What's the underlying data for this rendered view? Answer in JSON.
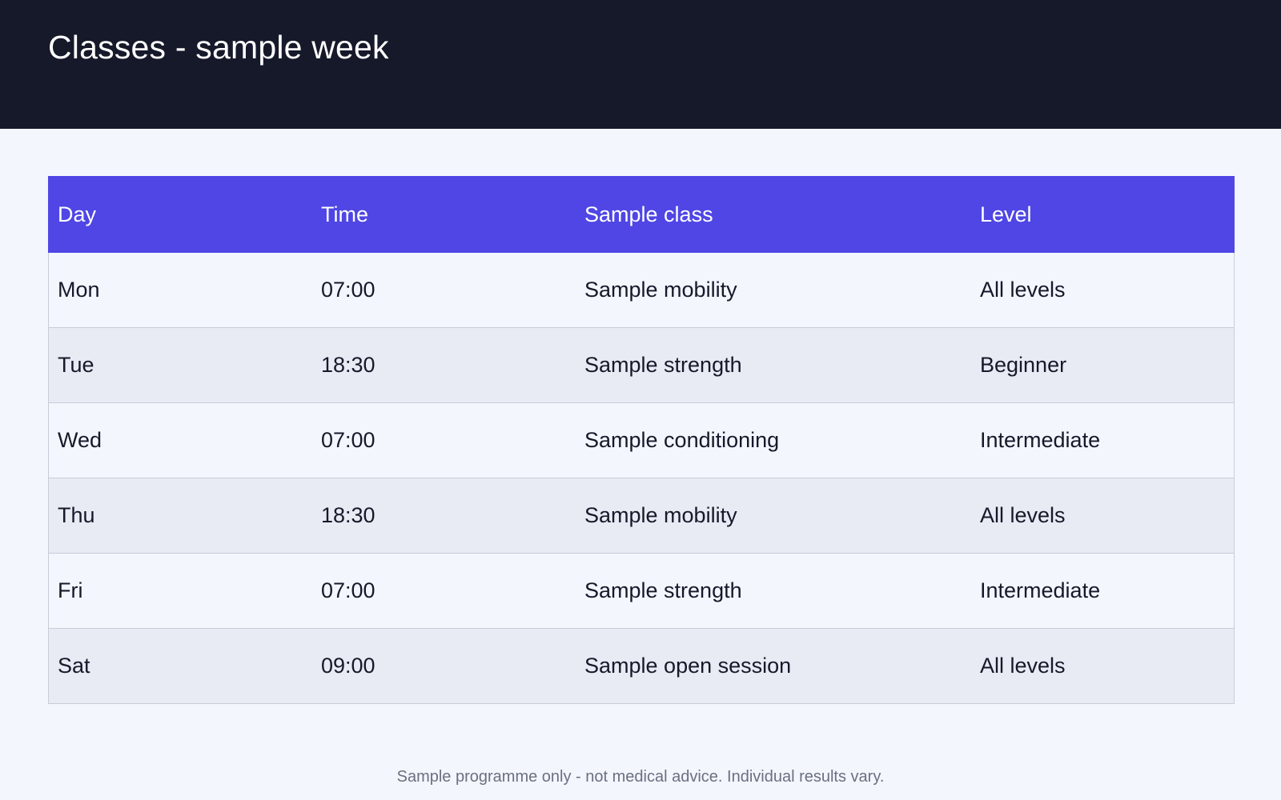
{
  "header": {
    "title": "Classes - sample week"
  },
  "schedule": {
    "columns": [
      "Day",
      "Time",
      "Sample class",
      "Level"
    ],
    "rows": [
      {
        "day": "Mon",
        "time": "07:00",
        "class": "Sample mobility",
        "level": "All levels"
      },
      {
        "day": "Tue",
        "time": "18:30",
        "class": "Sample strength",
        "level": "Beginner"
      },
      {
        "day": "Wed",
        "time": "07:00",
        "class": "Sample conditioning",
        "level": "Intermediate"
      },
      {
        "day": "Thu",
        "time": "18:30",
        "class": "Sample mobility",
        "level": "All levels"
      },
      {
        "day": "Fri",
        "time": "07:00",
        "class": "Sample strength",
        "level": "Intermediate"
      },
      {
        "day": "Sat",
        "time": "09:00",
        "class": "Sample open session",
        "level": "All levels"
      }
    ]
  },
  "footer": {
    "note": "Sample programme only - not medical advice. Individual results vary."
  },
  "colors": {
    "header_bg": "#16192a",
    "table_header_bg": "#4f46e5",
    "page_bg": "#f3f6fd",
    "row_alt_bg": "#e8ebf3"
  }
}
